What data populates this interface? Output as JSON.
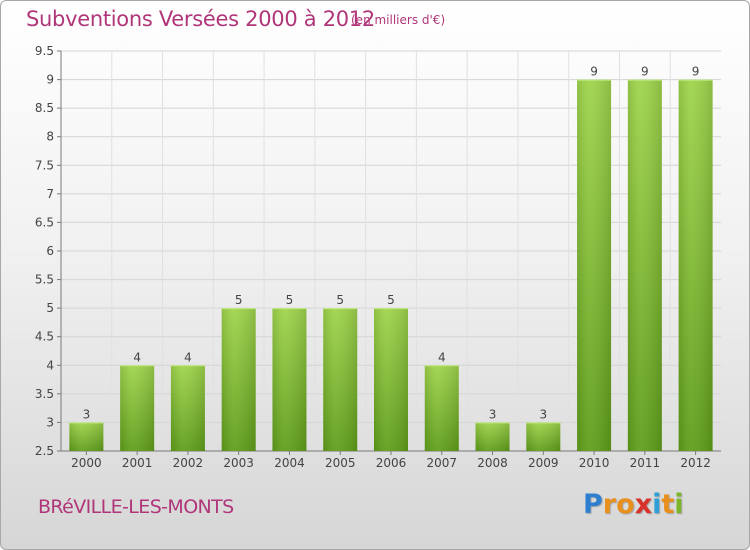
{
  "chart_data": {
    "type": "bar",
    "title": "Subventions Versées 2000 à 2012",
    "unit": "(en milliers d'€)",
    "categories": [
      "2000",
      "2001",
      "2002",
      "2003",
      "2004",
      "2005",
      "2006",
      "2007",
      "2008",
      "2009",
      "2010",
      "2011",
      "2012"
    ],
    "values": [
      3,
      4,
      4,
      5,
      5,
      5,
      5,
      4,
      3,
      3,
      9,
      9,
      9
    ],
    "ylim": [
      2.5,
      9.5
    ],
    "yticks": [
      "2.5",
      "3",
      "3.5",
      "4",
      "4.5",
      "5",
      "5.5",
      "6",
      "6.5",
      "7",
      "7.5",
      "8",
      "8.5",
      "9",
      "9.5"
    ],
    "grid": true,
    "bar_color_top": "#9fd44c",
    "bar_color_bottom": "#5f9e1a"
  },
  "footer": {
    "commune": "BRéVILLE-LES-MONTS",
    "logo_letters": [
      "P",
      "r",
      "o",
      "x",
      "i",
      "t",
      "i"
    ],
    "logo_colors": [
      "#2f7fd0",
      "#e8901e",
      "#e8901e",
      "#d8322a",
      "#2f9fd8",
      "#e8901e",
      "#7db52a"
    ]
  }
}
